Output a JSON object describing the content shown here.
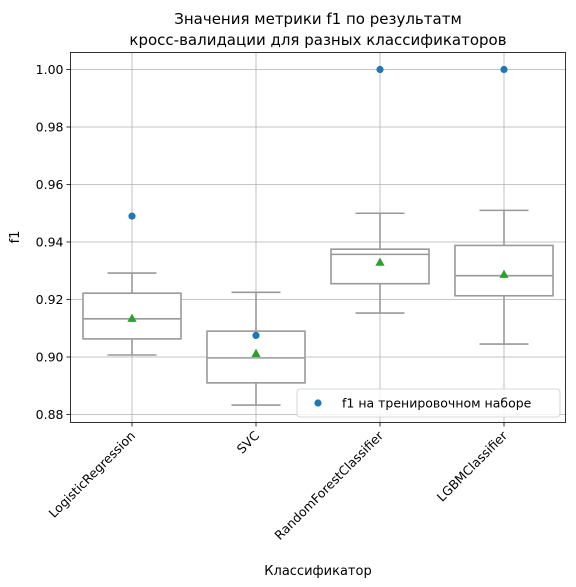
{
  "chart_data": {
    "type": "box",
    "title_lines": [
      "Значения метрики f1 по результатм",
      "кросс-валидации для разных классификаторов"
    ],
    "xlabel": "Классификатор",
    "ylabel": "f1",
    "ylim": [
      0.878,
      1.006
    ],
    "yticks": [
      0.88,
      0.9,
      0.92,
      0.94,
      0.96,
      0.98,
      1.0
    ],
    "ytick_labels": [
      "0.88",
      "0.90",
      "0.92",
      "0.94",
      "0.96",
      "0.98",
      "1.00"
    ],
    "grid": true,
    "categories": [
      "LogisticRegression",
      "SVC",
      "RandomForestClassifier",
      "LGBMClassifier"
    ],
    "boxes": [
      {
        "whisker_low": 0.9007,
        "q1": 0.9063,
        "median": 0.9133,
        "q3": 0.9222,
        "whisker_high": 0.9292,
        "mean": 0.9135
      },
      {
        "whisker_low": 0.8833,
        "q1": 0.891,
        "median": 0.8997,
        "q3": 0.909,
        "whisker_high": 0.9225,
        "mean": 0.9013
      },
      {
        "whisker_low": 0.9153,
        "q1": 0.9255,
        "median": 0.9357,
        "q3": 0.9375,
        "whisker_high": 0.95,
        "mean": 0.933
      },
      {
        "whisker_low": 0.9045,
        "q1": 0.9213,
        "median": 0.9283,
        "q3": 0.9388,
        "whisker_high": 0.951,
        "mean": 0.9288
      }
    ],
    "train_points": {
      "name": "f1 на тренировочном наборе",
      "values": [
        0.949,
        0.9075,
        1.0,
        1.0
      ]
    },
    "legend_position": "lower-right",
    "colors": {
      "box": "#999999",
      "grid": "#b0b0b0",
      "mean_marker": "#2ca02c",
      "train_point": "#1f77b4",
      "axes": "#000000"
    }
  }
}
